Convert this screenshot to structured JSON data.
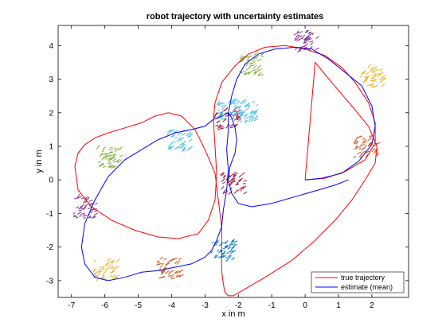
{
  "chart_data": {
    "type": "line",
    "title": "robot trajectory with uncertainty estimates",
    "xlabel": "x in m",
    "ylabel": "y in m",
    "xlim": [
      -7.4,
      3.1
    ],
    "ylim": [
      -3.5,
      4.6
    ],
    "xticks": [
      -7,
      -6,
      -5,
      -4,
      -3,
      -2,
      -1,
      0,
      1,
      2
    ],
    "yticks": [
      -3,
      -2,
      -1,
      0,
      1,
      2,
      3,
      4
    ],
    "grid": false,
    "legend_position": "bottom-right",
    "series": [
      {
        "name": "true trajectory",
        "color": "#ff0000",
        "x": [
          0,
          0.6,
          1.2,
          1.8,
          2.1,
          2.1,
          1.9,
          1.5,
          1.1,
          0.6,
          0.0,
          -0.6,
          -1.2,
          -1.7,
          -2.1,
          -2.5,
          -2.7,
          -2.75,
          -2.7,
          -2.65,
          -2.7,
          -2.9,
          -3.2,
          -3.8,
          -4.4,
          -5.1,
          -5.8,
          -6.4,
          -6.8,
          -6.9,
          -6.8,
          -6.6,
          -6.3,
          -5.9,
          -5.4,
          -4.9,
          -4.5,
          -4.1,
          -3.7,
          -3.3,
          -3.0,
          -2.7,
          -2.6,
          -2.5,
          -2.5,
          -2.5,
          -2.45,
          -2.4,
          -2.3,
          -2.15,
          -1.8,
          -1.2,
          -0.4,
          0.3,
          0.9,
          1.4,
          1.8,
          2.1,
          2.15,
          1.9,
          1.4,
          0.8,
          0.3,
          0
        ],
        "y": [
          0,
          0.05,
          0.25,
          0.6,
          1.1,
          1.7,
          2.3,
          2.9,
          3.35,
          3.7,
          3.9,
          4.0,
          3.95,
          3.75,
          3.4,
          2.9,
          2.3,
          1.8,
          1.0,
          0.2,
          -0.6,
          -1.2,
          -1.6,
          -1.75,
          -1.7,
          -1.5,
          -1.2,
          -0.8,
          -0.3,
          0.4,
          0.8,
          1.05,
          1.25,
          1.4,
          1.55,
          1.7,
          1.9,
          2.0,
          1.9,
          1.5,
          0.9,
          0.2,
          -0.6,
          -1.4,
          -2.1,
          -2.7,
          -3.1,
          -3.35,
          -3.45,
          -3.45,
          -3.25,
          -2.9,
          -2.4,
          -1.8,
          -1.2,
          -0.6,
          0.0,
          0.5,
          1.0,
          1.6,
          2.2,
          2.9,
          3.5,
          0
        ]
      },
      {
        "name": "estimate (mean)",
        "color": "#0000ff",
        "x": [
          0,
          0.5,
          1.1,
          1.6,
          2.0,
          2.1,
          2.0,
          1.7,
          1.2,
          0.7,
          0.2,
          -0.3,
          -0.9,
          -1.4,
          -1.8,
          -2.05,
          -2.2,
          -2.3,
          -2.3,
          -2.35,
          -2.3,
          -2.35,
          -2.45,
          -2.5,
          -2.65,
          -2.8,
          -3.0,
          -3.4,
          -3.9,
          -4.4,
          -4.9,
          -5.4,
          -5.9,
          -6.3,
          -6.6,
          -6.7,
          -6.6,
          -6.3,
          -5.9,
          -5.4,
          -4.9,
          -4.4,
          -3.9,
          -3.4,
          -3.0,
          -2.75,
          -2.6,
          -2.5,
          -2.4,
          -2.3,
          -2.2,
          -2.1,
          -2.05,
          -2.1,
          -2.25,
          -2.3,
          -2.2,
          -2.0,
          -1.6,
          -1.0,
          -0.3,
          0.4,
          0.9,
          1.3
        ],
        "y": [
          0,
          0.05,
          0.2,
          0.55,
          1.05,
          1.6,
          2.2,
          2.8,
          3.2,
          3.6,
          3.9,
          3.95,
          3.9,
          3.75,
          3.45,
          3.0,
          2.5,
          2.0,
          1.5,
          0.9,
          0.3,
          -0.3,
          -0.9,
          -1.4,
          -1.8,
          -2.1,
          -2.3,
          -2.5,
          -2.6,
          -2.7,
          -2.75,
          -2.9,
          -3.0,
          -2.9,
          -2.5,
          -2.0,
          -1.3,
          -0.6,
          0.1,
          0.6,
          0.9,
          1.2,
          1.4,
          1.5,
          1.6,
          1.8,
          1.85,
          1.9,
          1.95,
          2.0,
          1.85,
          1.55,
          1.2,
          0.8,
          0.4,
          0.0,
          -0.4,
          -0.7,
          -0.8,
          -0.7,
          -0.5,
          -0.3,
          -0.15,
          0
        ]
      }
    ],
    "uncertainty_clusters": [
      {
        "x": 0.0,
        "y": 4.1,
        "color": "#7e2f8e"
      },
      {
        "x": 2.0,
        "y": 3.05,
        "color": "#edb120"
      },
      {
        "x": 1.8,
        "y": 0.95,
        "color": "#d95319"
      },
      {
        "x": -1.65,
        "y": 3.4,
        "color": "#77ac30"
      },
      {
        "x": -1.8,
        "y": 2.0,
        "color": "#4dbeee"
      },
      {
        "x": -2.4,
        "y": 1.75,
        "color": "#a2142f"
      },
      {
        "x": -2.3,
        "y": 2.05,
        "color": "#4dbeee"
      },
      {
        "x": -2.2,
        "y": -0.15,
        "color": "#a2142f"
      },
      {
        "x": -2.5,
        "y": -2.15,
        "color": "#0072bd"
      },
      {
        "x": -4.1,
        "y": -2.65,
        "color": "#d95319"
      },
      {
        "x": -6.0,
        "y": -2.75,
        "color": "#edb120"
      },
      {
        "x": -6.6,
        "y": -0.85,
        "color": "#7e2f8e"
      },
      {
        "x": -5.9,
        "y": 0.65,
        "color": "#77ac30"
      },
      {
        "x": -3.8,
        "y": 1.15,
        "color": "#4dbeee"
      }
    ]
  }
}
